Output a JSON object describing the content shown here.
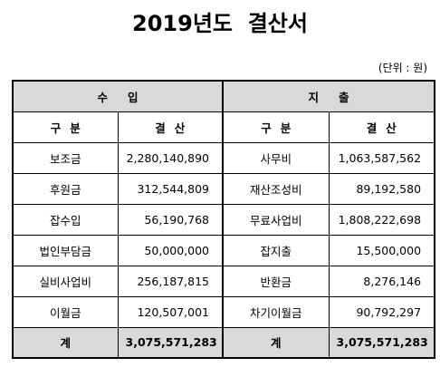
{
  "document": {
    "title": "2019년도  결산서",
    "unit": "(단위 : 원)"
  },
  "table": {
    "income_header": "수입",
    "expense_header": "지출",
    "col_category": "구분",
    "col_settlement": "결산",
    "rows": [
      {
        "income_item": "보조금",
        "income_amount": "2,280,140,890",
        "expense_item": "사무비",
        "expense_amount": "1,063,587,562"
      },
      {
        "income_item": "후원금",
        "income_amount": "312,544,809",
        "expense_item": "재산조성비",
        "expense_amount": "89,192,580"
      },
      {
        "income_item": "잡수입",
        "income_amount": "56,190,768",
        "expense_item": "무료사업비",
        "expense_amount": "1,808,222,698"
      },
      {
        "income_item": "법인부담금",
        "income_amount": "50,000,000",
        "expense_item": "잡지출",
        "expense_amount": "15,500,000"
      },
      {
        "income_item": "실비사업비",
        "income_amount": "256,187,815",
        "expense_item": "반환금",
        "expense_amount": "8,276,146"
      },
      {
        "income_item": "이월금",
        "income_amount": "120,507,001",
        "expense_item": "차기이월금",
        "expense_amount": "90,792,297"
      }
    ],
    "total": {
      "income_label": "계",
      "income_amount": "3,075,571,283",
      "expense_label": "계",
      "expense_amount": "3,075,571,283"
    }
  }
}
